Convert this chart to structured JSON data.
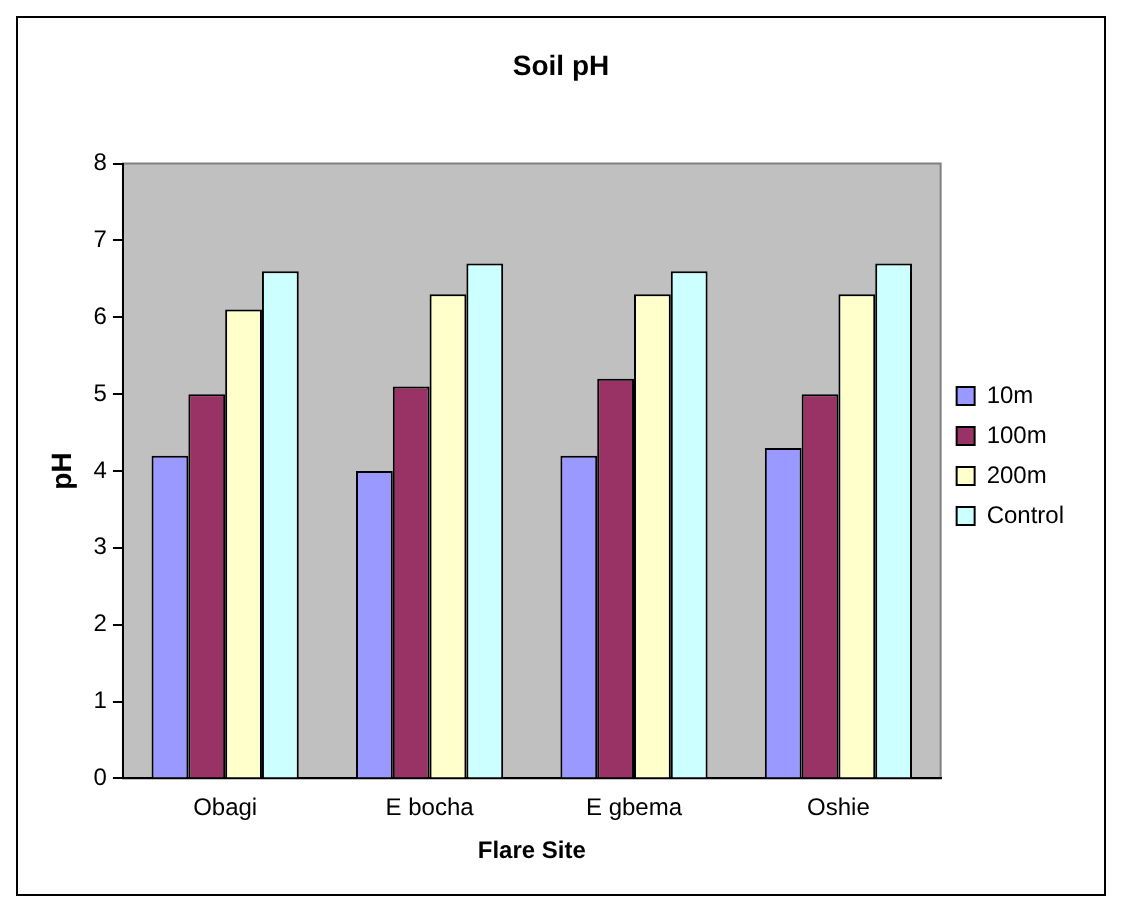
{
  "chart_data": {
    "type": "bar",
    "title": "Soil pH",
    "xlabel": "Flare Site",
    "ylabel": "pH",
    "categories": [
      "Obagi",
      "E bocha",
      "E gbema",
      "Oshie"
    ],
    "series": [
      {
        "name": "10m",
        "color": "#9999ff",
        "values": [
          4.2,
          4.0,
          4.2,
          4.3
        ]
      },
      {
        "name": "100m",
        "color": "#993366",
        "values": [
          5.0,
          5.1,
          5.2,
          5.0
        ]
      },
      {
        "name": "200m",
        "color": "#ffffcc",
        "values": [
          6.1,
          6.3,
          6.3,
          6.3
        ]
      },
      {
        "name": "Control",
        "color": "#ccffff",
        "values": [
          6.6,
          6.7,
          6.6,
          6.7
        ]
      }
    ],
    "ylim": [
      0,
      8
    ],
    "yticks": [
      0,
      1,
      2,
      3,
      4,
      5,
      6,
      7,
      8
    ],
    "grid": false,
    "legend": "right"
  }
}
